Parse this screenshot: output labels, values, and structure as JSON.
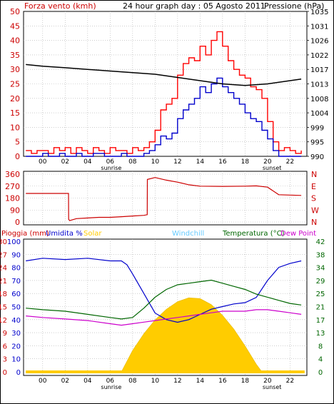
{
  "chart_data": [
    {
      "type": "line",
      "title": "24 hour graph day : 05 Agosto 2011",
      "ylabel_left": "Forza vento (kmh)",
      "ylabel_right": "Pressione (hPa)",
      "x_tick_labels": [
        "00",
        "02",
        "04",
        "06",
        "08",
        "10",
        "12",
        "14",
        "16",
        "18",
        "20",
        "22"
      ],
      "x_tick_hours": [
        0,
        2,
        4,
        6,
        8,
        10,
        12,
        14,
        16,
        18,
        20,
        22
      ],
      "sunrise_label": "sunrise",
      "sunset_label": "sunset",
      "sunrise_hour": 6.1,
      "sunset_hour": 20.4,
      "xlim": [
        -1.7,
        23.5
      ],
      "ylim_left": [
        0,
        50
      ],
      "ylim_right": [
        990,
        1035
      ],
      "left_ticks": [
        0,
        5,
        10,
        15,
        20,
        25,
        30,
        35,
        40,
        45,
        50
      ],
      "right_ticks": [
        990,
        995,
        999,
        1004,
        1008,
        1013,
        1017,
        1022,
        1026,
        1031,
        1035
      ],
      "series": [
        {
          "axis": "left",
          "color": "#ff0000",
          "x": [
            -1.5,
            -1,
            -0.5,
            0,
            0.5,
            1,
            1.5,
            2,
            2.5,
            3,
            3.5,
            4,
            4.5,
            5,
            5.5,
            6,
            6.5,
            7,
            7.5,
            8,
            8.5,
            9,
            9.5,
            10,
            10.5,
            11,
            11.5,
            12,
            12.5,
            13,
            13.5,
            14,
            14.5,
            15,
            15.5,
            16,
            16.5,
            17,
            17.5,
            18,
            18.5,
            19,
            19.5,
            20,
            20.5,
            21,
            21.5,
            22,
            22.5,
            23
          ],
          "y": [
            2,
            1,
            2,
            2,
            1,
            3,
            2,
            3,
            1,
            3,
            2,
            1,
            3,
            2,
            1,
            3,
            2,
            2,
            1,
            3,
            2,
            3,
            5,
            9,
            16,
            18,
            20,
            28,
            32,
            34,
            33,
            38,
            35,
            40,
            43,
            38,
            33,
            30,
            28,
            27,
            24,
            23,
            20,
            12,
            5,
            2,
            3,
            2,
            1,
            2
          ]
        },
        {
          "axis": "left",
          "color": "#0000cc",
          "x": [
            -1.5,
            -1,
            -0.5,
            0,
            0.5,
            1,
            1.5,
            2,
            2.5,
            3,
            3.5,
            4,
            4.5,
            5,
            5.5,
            6,
            6.5,
            7,
            7.5,
            8,
            8.5,
            9,
            9.5,
            10,
            10.5,
            11,
            11.5,
            12,
            12.5,
            13,
            13.5,
            14,
            14.5,
            15,
            15.5,
            16,
            16.5,
            17,
            17.5,
            18,
            18.5,
            19,
            19.5,
            20,
            20.5,
            21,
            21.5,
            22,
            22.5,
            23
          ],
          "y": [
            0,
            0,
            0,
            1,
            0,
            0,
            1,
            0,
            0,
            1,
            0,
            0,
            1,
            1,
            0,
            0,
            0,
            1,
            0,
            0,
            0,
            1,
            2,
            4,
            7,
            6,
            8,
            13,
            16,
            18,
            20,
            24,
            22,
            25,
            27,
            24,
            22,
            20,
            18,
            15,
            13,
            12,
            9,
            6,
            2,
            0,
            0,
            0,
            0,
            0
          ]
        },
        {
          "axis": "right",
          "color": "#000000",
          "x": [
            -1.5,
            0,
            2,
            4,
            6,
            8,
            10,
            12,
            14,
            16,
            18,
            20,
            22,
            23
          ],
          "y": [
            1018.5,
            1018.0,
            1017.5,
            1017.0,
            1016.5,
            1016.0,
            1015.5,
            1014.5,
            1013.5,
            1012.5,
            1012.0,
            1012.5,
            1013.5,
            1014.0
          ]
        }
      ]
    },
    {
      "type": "line",
      "ylabel_right": "N W S E N",
      "right_letters": [
        "N",
        "W",
        "S",
        "E",
        "N"
      ],
      "xlim": [
        -1.7,
        23.5
      ],
      "ylim": [
        0,
        360
      ],
      "left_ticks": [
        0,
        90,
        180,
        270,
        360
      ],
      "series": [
        {
          "color": "#cc0000",
          "x": [
            -1.5,
            2.3,
            2.31,
            2.4,
            3,
            4,
            5,
            6,
            7,
            8,
            9,
            9.3,
            9.31,
            10,
            11,
            12,
            13,
            14,
            16,
            18,
            19,
            20,
            21,
            23
          ],
          "y": [
            215,
            215,
            20,
            10,
            25,
            30,
            35,
            35,
            40,
            45,
            50,
            55,
            320,
            335,
            315,
            300,
            280,
            270,
            268,
            270,
            272,
            262,
            205,
            200
          ]
        }
      ]
    },
    {
      "type": "line",
      "ylabel_parts": [
        {
          "text": "Pioggia (mm)",
          "color": "#cc0000"
        },
        {
          "text": "Umidita %",
          "color": "#0000cc"
        },
        {
          "text": "Solar",
          "color": "#ffcc00"
        },
        {
          "text": "Windchill",
          "color": "#66ccff"
        },
        {
          "text": "Temperatura (°C)",
          "color": "#006600"
        },
        {
          "text": "Dew Point",
          "color": "#cc00cc"
        }
      ],
      "x_tick_labels": [
        "00",
        "02",
        "04",
        "06",
        "08",
        "10",
        "12",
        "14",
        "16",
        "18",
        "20",
        "22"
      ],
      "x_tick_hours": [
        0,
        2,
        4,
        6,
        8,
        10,
        12,
        14,
        16,
        18,
        20,
        22
      ],
      "sunrise_label": "sunrise",
      "sunset_label": "sunset",
      "sunrise_hour": 6.1,
      "sunset_hour": 20.4,
      "xlim": [
        -1.7,
        23.5
      ],
      "left_ticks_outer": [
        "0",
        "3",
        "6",
        "9",
        "12",
        "15",
        "18",
        "21",
        "24",
        "27",
        "30"
      ],
      "left_ticks_inner": [
        "0",
        "10",
        "20",
        "30",
        "40",
        "50",
        "60",
        "70",
        "80",
        "90",
        "100"
      ],
      "right_ticks": [
        "0",
        "4",
        "8",
        "13",
        "17",
        "21",
        "25",
        "29",
        "34",
        "38",
        "42"
      ],
      "series": [
        {
          "name": "Umidita %",
          "axis": "humidity",
          "color": "#0000cc",
          "x": [
            -1.5,
            0,
            2,
            4,
            6,
            7,
            7.5,
            8,
            9,
            10,
            11,
            12,
            13,
            14,
            15,
            16,
            17,
            18,
            19,
            20,
            21,
            22,
            23
          ],
          "y": [
            85,
            87,
            86,
            87,
            85,
            85,
            82,
            75,
            60,
            45,
            40,
            38,
            40,
            44,
            48,
            50,
            52,
            53,
            57,
            70,
            80,
            83,
            85
          ]
        },
        {
          "name": "Temperatura (°C)",
          "axis": "temperature",
          "color": "#006600",
          "x": [
            -1.5,
            0,
            2,
            4,
            6,
            7,
            8,
            9,
            10,
            11,
            12,
            13,
            14,
            15,
            16,
            17,
            18,
            19,
            20,
            21,
            22,
            23
          ],
          "y": [
            20.5,
            20.0,
            19.5,
            18.5,
            17.5,
            17.0,
            17.5,
            20.5,
            24.0,
            26.5,
            28.0,
            28.5,
            29.0,
            29.5,
            28.5,
            27.5,
            26.5,
            25.0,
            24.0,
            23.0,
            22.0,
            21.5
          ]
        },
        {
          "name": "Dew Point",
          "axis": "temperature",
          "color": "#cc00cc",
          "x": [
            -1.5,
            0,
            2,
            4,
            6,
            7,
            8,
            9,
            10,
            11,
            12,
            13,
            14,
            15,
            16,
            17,
            18,
            19,
            20,
            21,
            22,
            23
          ],
          "y": [
            18.0,
            17.5,
            17.0,
            16.5,
            15.5,
            15.0,
            15.5,
            16.0,
            16.5,
            17.0,
            17.5,
            18.0,
            18.5,
            19.0,
            19.5,
            19.5,
            19.5,
            20.0,
            20.0,
            19.5,
            19.0,
            18.5
          ]
        },
        {
          "name": "Solar",
          "axis": "solar_fraction",
          "color": "#ffcc00",
          "x": [
            7.0,
            8,
            9,
            10,
            11,
            12,
            13,
            14,
            15,
            16,
            17,
            18,
            19,
            19.5
          ],
          "y": [
            0,
            0.28,
            0.5,
            0.68,
            0.82,
            0.92,
            0.97,
            0.96,
            0.88,
            0.74,
            0.56,
            0.34,
            0.1,
            0
          ]
        },
        {
          "name": "Pioggia (mm)",
          "axis": "rain",
          "color": "#cc0000",
          "x": [
            -1.5,
            23.3
          ],
          "y": [
            0,
            0
          ]
        }
      ]
    }
  ]
}
